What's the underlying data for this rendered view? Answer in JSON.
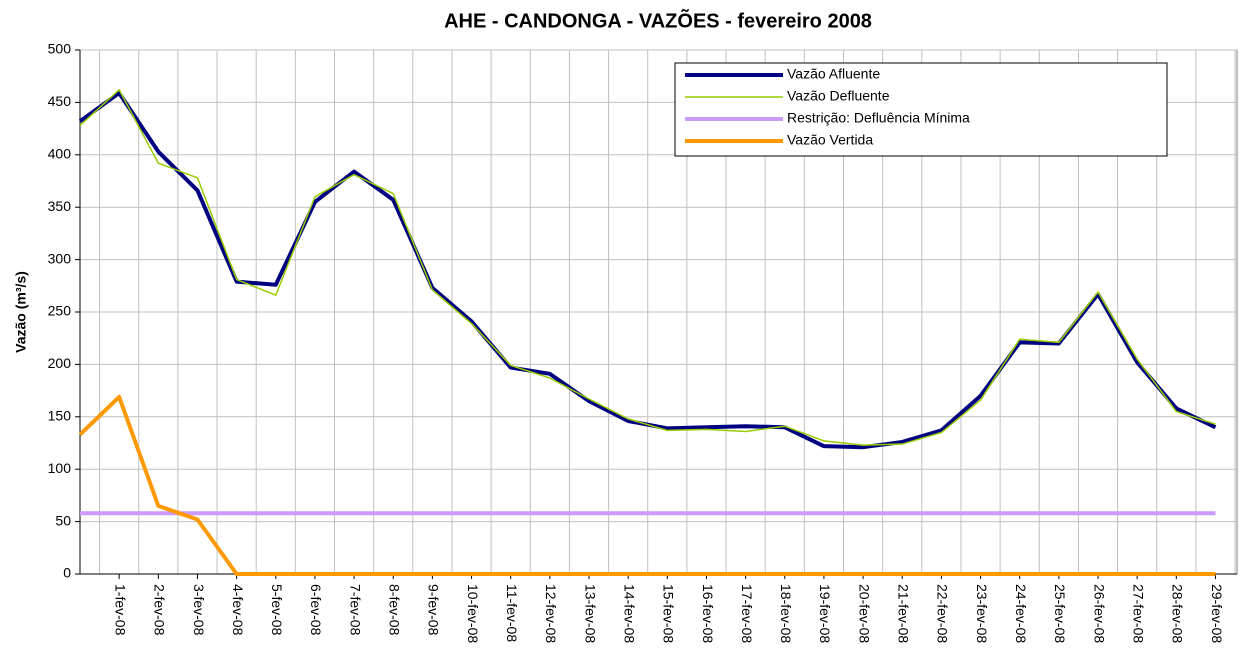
{
  "chart_data": {
    "type": "line",
    "title": "AHE - CANDONGA - VAZÕES - fevereiro 2008",
    "y_label": "Vazão (m³/s)",
    "categories": [
      null,
      "1-fev-08",
      "2-fev-08",
      "3-fev-08",
      "4-fev-08",
      "5-fev-08",
      "6-fev-08",
      "7-fev-08",
      "8-fev-08",
      "9-fev-08",
      "10-fev-08",
      "11-fev-08",
      "12-fev-08",
      "13-fev-08",
      "14-fev-08",
      "15-fev-08",
      "16-fev-08",
      "17-fev-08",
      "18-fev-08",
      "19-fev-08",
      "20-fev-08",
      "21-fev-08",
      "22-fev-08",
      "23-fev-08",
      "24-fev-08",
      "25-fev-08",
      "26-fev-08",
      "27-fev-08",
      "28-fev-08",
      "29-fev-08"
    ],
    "series": [
      {
        "name": "Vazão Afluente",
        "color": "#000080",
        "width": 4,
        "values": [
          432,
          459,
          403,
          366,
          279,
          276,
          355,
          384,
          357,
          273,
          241,
          197,
          191,
          165,
          146,
          139,
          140,
          141,
          140,
          122,
          121,
          126,
          137,
          170,
          221,
          220,
          267,
          202,
          158,
          140
        ]
      },
      {
        "name": "Vazão Defluente",
        "color": "#99cc00",
        "width": 1.5,
        "values": [
          428,
          462,
          392,
          378,
          281,
          266,
          360,
          381,
          363,
          271,
          239,
          199,
          187,
          167,
          148,
          137,
          138,
          136,
          141,
          127,
          123,
          124,
          135,
          166,
          224,
          221,
          269,
          205,
          155,
          143
        ]
      },
      {
        "name": "Restrição: Defluência Mínima",
        "color": "#cc99ff",
        "width": 4,
        "values": [
          58,
          58,
          58,
          58,
          58,
          58,
          58,
          58,
          58,
          58,
          58,
          58,
          58,
          58,
          58,
          58,
          58,
          58,
          58,
          58,
          58,
          58,
          58,
          58,
          58,
          58,
          58,
          58,
          58,
          58
        ]
      },
      {
        "name": "Vazão Vertida",
        "color": "#ff9900",
        "width": 4,
        "values": [
          133,
          169,
          65,
          52,
          0,
          0,
          0,
          0,
          0,
          0,
          0,
          0,
          0,
          0,
          0,
          0,
          0,
          0,
          0,
          0,
          0,
          0,
          0,
          0,
          0,
          0,
          0,
          0,
          0,
          0
        ]
      }
    ],
    "ylim": [
      0,
      500
    ],
    "yticks": [
      0,
      50,
      100,
      150,
      200,
      250,
      300,
      350,
      400,
      450,
      500
    ],
    "grid": true
  }
}
